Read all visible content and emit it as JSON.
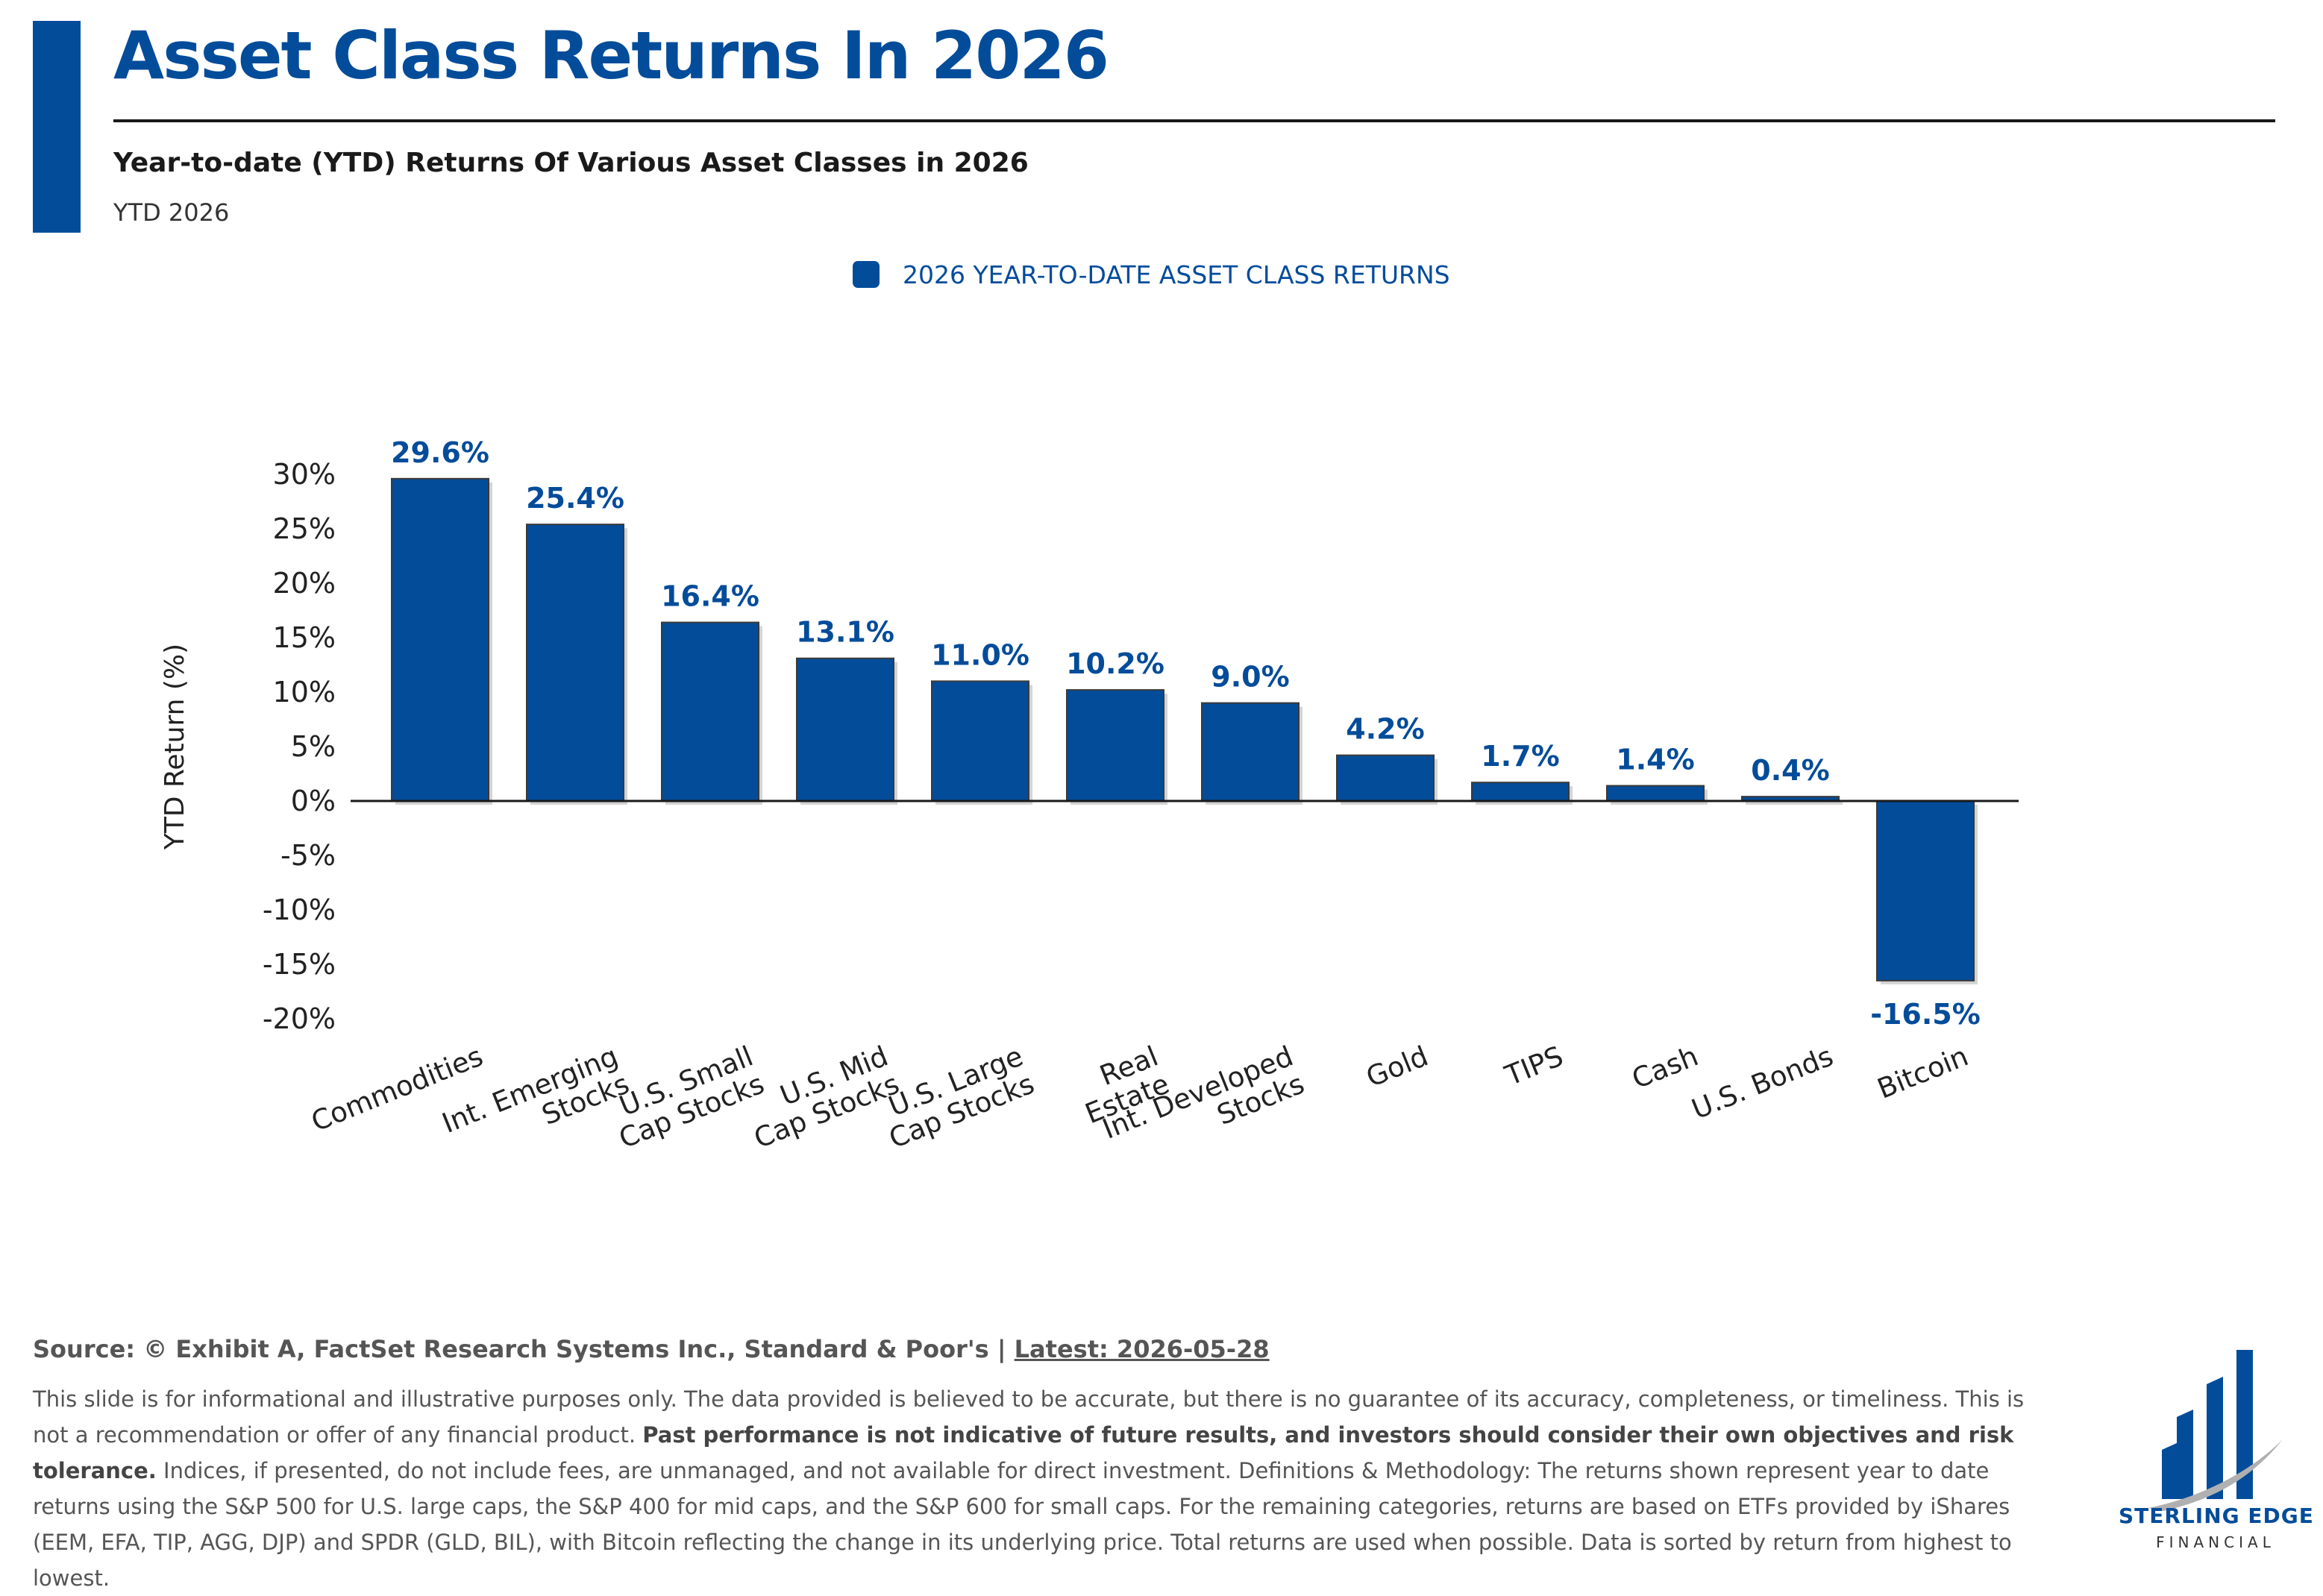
{
  "header": {
    "title": "Asset Class Returns In 2026",
    "subtitle": "Year-to-date (YTD) Returns Of Various Asset Classes in 2026",
    "period_label": "YTD 2026"
  },
  "chart_data": {
    "type": "bar",
    "title": "Asset Class Returns In 2026",
    "ylabel": "YTD Return (%)",
    "xlabel": "",
    "ylim": [
      -20,
      30
    ],
    "yticks": [
      "30%",
      "25%",
      "20%",
      "15%",
      "10%",
      "5%",
      "0%",
      "-5%",
      "-10%",
      "-15%",
      "-20%"
    ],
    "ytick_values": [
      30,
      25,
      20,
      15,
      10,
      5,
      0,
      -5,
      -10,
      -15,
      -20
    ],
    "grid": false,
    "legend_position": "top-center",
    "categories": [
      "Commodities",
      "Int. Emerging Stocks",
      "U.S. Small Cap Stocks",
      "U.S. Mid Cap Stocks",
      "U.S. Large Cap Stocks",
      "Real Estate",
      "Int. Developed Stocks",
      "Gold",
      "TIPS",
      "Cash",
      "U.S. Bonds",
      "Bitcoin"
    ],
    "category_lines": [
      [
        "Commodities"
      ],
      [
        "Int. Emerging",
        "Stocks"
      ],
      [
        "U.S. Small",
        "Cap Stocks"
      ],
      [
        "U.S. Mid",
        "Cap Stocks"
      ],
      [
        "U.S. Large",
        "Cap Stocks"
      ],
      [
        "Real",
        "Estate"
      ],
      [
        "Int. Developed",
        "Stocks"
      ],
      [
        "Gold"
      ],
      [
        "TIPS"
      ],
      [
        "Cash"
      ],
      [
        "U.S. Bonds"
      ],
      [
        "Bitcoin"
      ]
    ],
    "series": [
      {
        "name": "2026 YEAR-TO-DATE ASSET CLASS RETURNS",
        "values": [
          29.6,
          25.4,
          16.4,
          13.1,
          11.0,
          10.2,
          9.0,
          4.2,
          1.7,
          1.4,
          0.4,
          -16.5
        ],
        "labels": [
          "29.6%",
          "25.4%",
          "16.4%",
          "13.1%",
          "11.0%",
          "10.2%",
          "9.0%",
          "4.2%",
          "1.7%",
          "1.4%",
          "0.4%",
          "-16.5%"
        ],
        "color": "#034c9a"
      }
    ]
  },
  "footer": {
    "source": "Source: © Exhibit A, FactSet Research Systems Inc., Standard & Poor's | ",
    "latest": "Latest: 2026-05-28",
    "disclaimer_1": "This slide is for informational and illustrative purposes only. The data provided is believed to be accurate, but there is no guarantee of its accuracy, completeness, or timeliness. This is not a recommendation or offer of any financial product. ",
    "disclaimer_bold": "Past performance is not indicative of future results, and investors should consider their own objectives and risk tolerance.",
    "disclaimer_2": " Indices, if presented, do not include fees, are unmanaged, and not available for direct investment. Definitions & Methodology: The returns shown represent year to date returns using the S&P 500 for U.S. large caps, the S&P 400 for mid caps, and the S&P 600 for small caps. For the remaining categories, returns are based on ETFs provided by iShares (EEM, EFA, TIP, AGG, DJP) and SPDR (GLD, BIL), with Bitcoin reflecting the change in its underlying price. Total returns are used when possible. Data is sorted by return from highest to lowest."
  },
  "logo": {
    "name": "Sterling Edge",
    "sub": "FINANCIAL",
    "icon": "bar-chart-logo-icon",
    "color": "#034c9a"
  }
}
